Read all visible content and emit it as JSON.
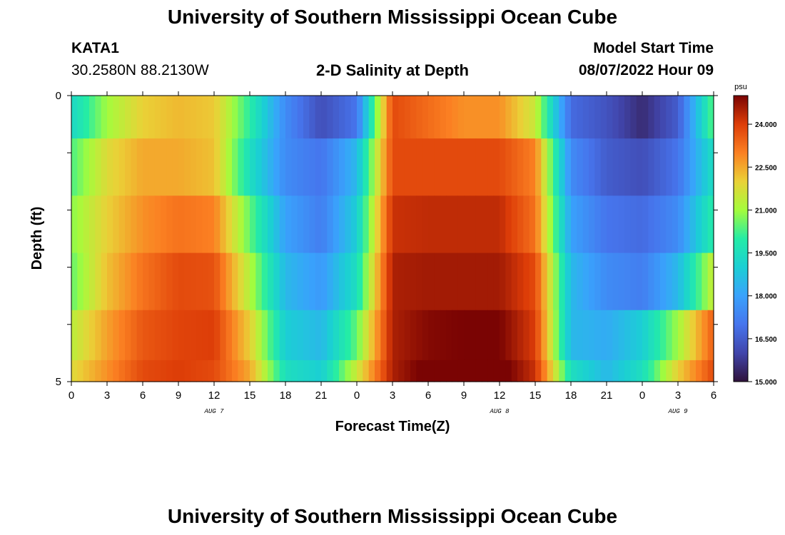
{
  "header": {
    "title_top": "University of Southern Mississippi Ocean Cube",
    "station": "KATA1",
    "coords": "30.2580N  88.2130W",
    "subtitle": "2-D Salinity at Depth",
    "model_start_label": "Model Start Time",
    "model_start_value": "08/07/2022 Hour 09",
    "title_bottom": "University of Southern Mississippi Ocean Cube"
  },
  "chart_data": {
    "type": "heatmap",
    "title": "2-D Salinity at Depth",
    "xlabel": "Forecast Time(Z)",
    "ylabel": "Depth (ft)",
    "x_hours_range": [
      0,
      54
    ],
    "x_ticks": [
      "0",
      "3",
      "6",
      "9",
      "12",
      "15",
      "18",
      "21",
      "0",
      "3",
      "6",
      "9",
      "12",
      "15",
      "18",
      "21",
      "0",
      "3",
      "6"
    ],
    "day_labels": [
      {
        "label": "AUG 7",
        "hour": 12
      },
      {
        "label": "AUG 8",
        "hour": 36
      },
      {
        "label": "AUG 9",
        "hour": 51
      }
    ],
    "y_ticks": [
      "0",
      "5"
    ],
    "depth_range": [
      0,
      5
    ],
    "depth_layers": [
      0.25,
      1.25,
      2.25,
      3.25,
      4.25,
      5.0
    ],
    "colorbar": {
      "unit": "psu",
      "min": 15.0,
      "max": 25.0,
      "ticks": [
        "15.000",
        "16.500",
        "18.000",
        "19.500",
        "21.000",
        "22.500",
        "24.000"
      ]
    },
    "keyframe_hours": [
      0,
      3,
      6,
      9,
      12,
      15,
      18,
      21,
      24,
      27,
      30,
      33,
      36,
      39,
      42,
      45,
      48,
      51,
      54
    ],
    "salinity_rows": [
      [
        19.3,
        21.0,
        22.0,
        22.3,
        22.1,
        20.0,
        17.5,
        16.2,
        17.0,
        23.8,
        23.3,
        22.8,
        22.8,
        21.5,
        16.8,
        16.3,
        15.5,
        16.5,
        20.5
      ],
      [
        20.3,
        21.8,
        22.5,
        22.5,
        22.2,
        19.5,
        17.5,
        17.0,
        18.5,
        23.8,
        23.8,
        23.8,
        23.8,
        23.0,
        17.5,
        16.5,
        16.2,
        17.0,
        19.5
      ],
      [
        20.8,
        22.0,
        22.8,
        23.2,
        23.0,
        20.5,
        18.0,
        17.2,
        19.0,
        24.2,
        24.3,
        24.3,
        24.3,
        23.2,
        18.0,
        17.0,
        16.8,
        17.5,
        20.0
      ],
      [
        20.5,
        22.2,
        23.2,
        23.8,
        23.7,
        21.2,
        18.5,
        17.8,
        19.5,
        24.5,
        24.6,
        24.6,
        24.6,
        23.8,
        18.5,
        17.5,
        17.2,
        18.5,
        21.5
      ],
      [
        21.3,
        22.6,
        23.6,
        23.9,
        24.0,
        22.0,
        19.0,
        18.5,
        20.5,
        24.5,
        24.9,
        25.0,
        25.0,
        24.0,
        18.5,
        18.2,
        19.0,
        21.0,
        23.5
      ],
      [
        21.8,
        22.8,
        23.8,
        24.0,
        23.8,
        22.5,
        19.5,
        19.0,
        21.5,
        24.5,
        25.2,
        25.4,
        25.3,
        24.2,
        19.5,
        18.5,
        19.5,
        22.0,
        23.8
      ]
    ]
  }
}
